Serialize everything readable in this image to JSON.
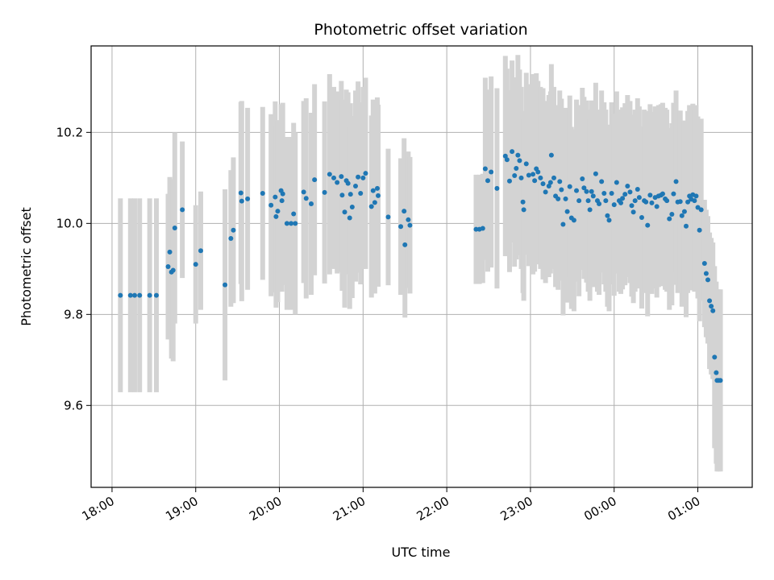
{
  "chart_data": {
    "type": "scatter",
    "title": "Photometric offset variation",
    "xlabel": "UTC time",
    "ylabel": "Photometric offset",
    "x_start": "18:00",
    "xlim_hours": [
      17.75,
      25.65
    ],
    "ylim": [
      9.42,
      10.39
    ],
    "x_ticks": [
      {
        "label": "18:00",
        "value": 18
      },
      {
        "label": "19:00",
        "value": 19
      },
      {
        "label": "20:00",
        "value": 20
      },
      {
        "label": "21:00",
        "value": 21
      },
      {
        "label": "22:00",
        "value": 22
      },
      {
        "label": "23:00",
        "value": 23
      },
      {
        "label": "00:00",
        "value": 24
      },
      {
        "label": "01:00",
        "value": 25
      }
    ],
    "y_ticks": [
      {
        "label": "9.6",
        "value": 9.6
      },
      {
        "label": "9.8",
        "value": 9.8
      },
      {
        "label": "10.0",
        "value": 10.0
      },
      {
        "label": "10.2",
        "value": 10.2
      }
    ],
    "grid": true,
    "colors": {
      "points": "#1f77b4",
      "errorbars": "#d3d3d3",
      "grid": "#b0b0b0"
    },
    "points": [
      [
        18.1,
        9.842,
        0.213
      ],
      [
        18.22,
        9.842,
        0.213
      ],
      [
        18.27,
        9.842,
        0.213
      ],
      [
        18.33,
        9.842,
        0.213
      ],
      [
        18.45,
        9.842,
        0.213
      ],
      [
        18.53,
        9.842,
        0.213
      ],
      [
        18.67,
        9.905,
        0.16
      ],
      [
        18.69,
        9.937,
        0.165
      ],
      [
        18.71,
        9.893,
        0.19
      ],
      [
        18.73,
        9.897,
        0.2
      ],
      [
        18.75,
        9.99,
        0.21
      ],
      [
        18.84,
        10.03,
        0.15
      ],
      [
        19.0,
        9.91,
        0.13
      ],
      [
        19.06,
        9.94,
        0.13
      ],
      [
        19.35,
        9.865,
        0.21
      ],
      [
        19.42,
        9.967,
        0.15
      ],
      [
        19.45,
        9.985,
        0.16
      ],
      [
        19.54,
        10.067,
        0.2
      ],
      [
        19.55,
        10.049,
        0.22
      ],
      [
        19.62,
        10.054,
        0.2
      ],
      [
        19.8,
        10.066,
        0.19
      ],
      [
        19.9,
        10.04,
        0.2
      ],
      [
        19.95,
        10.058,
        0.21
      ],
      [
        19.96,
        10.015,
        0.2
      ],
      [
        19.98,
        10.027,
        0.2
      ],
      [
        20.02,
        10.072,
        0.19
      ],
      [
        20.03,
        10.05,
        0.2
      ],
      [
        20.04,
        10.065,
        0.2
      ],
      [
        20.09,
        10.0,
        0.19
      ],
      [
        20.14,
        10.0,
        0.19
      ],
      [
        20.17,
        10.021,
        0.2
      ],
      [
        20.19,
        10.0,
        0.2
      ],
      [
        20.29,
        10.069,
        0.2
      ],
      [
        20.32,
        10.055,
        0.22
      ],
      [
        20.38,
        10.043,
        0.2
      ],
      [
        20.42,
        10.096,
        0.21
      ],
      [
        20.54,
        10.068,
        0.2
      ],
      [
        20.6,
        10.108,
        0.22
      ],
      [
        20.65,
        10.1,
        0.2
      ],
      [
        20.69,
        10.09,
        0.2
      ],
      [
        20.74,
        10.103,
        0.21
      ],
      [
        20.75,
        10.062,
        0.21
      ],
      [
        20.78,
        10.025,
        0.21
      ],
      [
        20.8,
        10.094,
        0.2
      ],
      [
        20.82,
        10.088,
        0.2
      ],
      [
        20.84,
        10.012,
        0.2
      ],
      [
        20.85,
        10.064,
        0.2
      ],
      [
        20.87,
        10.036,
        0.2
      ],
      [
        20.91,
        10.082,
        0.21
      ],
      [
        20.94,
        10.102,
        0.21
      ],
      [
        20.97,
        10.066,
        0.2
      ],
      [
        21.0,
        10.1,
        0.2
      ],
      [
        21.03,
        10.11,
        0.21
      ],
      [
        21.1,
        10.037,
        0.2
      ],
      [
        21.12,
        10.072,
        0.2
      ],
      [
        21.14,
        10.046,
        0.2
      ],
      [
        21.17,
        10.077,
        0.2
      ],
      [
        21.18,
        10.061,
        0.2
      ],
      [
        21.3,
        10.014,
        0.15
      ],
      [
        21.45,
        9.993,
        0.15
      ],
      [
        21.49,
        10.027,
        0.16
      ],
      [
        21.5,
        9.953,
        0.16
      ],
      [
        21.54,
        10.008,
        0.15
      ],
      [
        21.56,
        9.996,
        0.15
      ],
      [
        22.35,
        9.987,
        0.12
      ],
      [
        22.39,
        9.987,
        0.12
      ],
      [
        22.43,
        9.989,
        0.12
      ],
      [
        22.46,
        10.12,
        0.2
      ],
      [
        22.49,
        10.094,
        0.2
      ],
      [
        22.53,
        10.113,
        0.21
      ],
      [
        22.6,
        10.077,
        0.22
      ],
      [
        22.7,
        10.148,
        0.22
      ],
      [
        22.72,
        10.14,
        0.2
      ],
      [
        22.75,
        10.093,
        0.2
      ],
      [
        22.78,
        10.158,
        0.2
      ],
      [
        22.81,
        10.105,
        0.2
      ],
      [
        22.83,
        10.121,
        0.2
      ],
      [
        22.85,
        10.15,
        0.22
      ],
      [
        22.87,
        10.138,
        0.2
      ],
      [
        22.89,
        10.1,
        0.2
      ],
      [
        22.91,
        10.047,
        0.2
      ],
      [
        22.92,
        10.03,
        0.2
      ],
      [
        22.95,
        10.131,
        0.2
      ],
      [
        22.98,
        10.106,
        0.2
      ],
      [
        23.03,
        10.108,
        0.22
      ],
      [
        23.05,
        10.094,
        0.2
      ],
      [
        23.07,
        10.12,
        0.21
      ],
      [
        23.09,
        10.113,
        0.2
      ],
      [
        23.12,
        10.1,
        0.2
      ],
      [
        23.15,
        10.087,
        0.21
      ],
      [
        23.18,
        10.069,
        0.2
      ],
      [
        23.22,
        10.082,
        0.2
      ],
      [
        23.24,
        10.09,
        0.2
      ],
      [
        23.25,
        10.15,
        0.2
      ],
      [
        23.28,
        10.1,
        0.2
      ],
      [
        23.3,
        10.06,
        0.2
      ],
      [
        23.33,
        10.054,
        0.2
      ],
      [
        23.35,
        10.092,
        0.2
      ],
      [
        23.37,
        10.074,
        0.2
      ],
      [
        23.39,
        9.998,
        0.2
      ],
      [
        23.42,
        10.054,
        0.2
      ],
      [
        23.44,
        10.026,
        0.2
      ],
      [
        23.47,
        10.081,
        0.2
      ],
      [
        23.49,
        10.012,
        0.2
      ],
      [
        23.52,
        10.007,
        0.2
      ],
      [
        23.55,
        10.072,
        0.2
      ],
      [
        23.58,
        10.05,
        0.21
      ],
      [
        23.62,
        10.098,
        0.2
      ],
      [
        23.64,
        10.078,
        0.2
      ],
      [
        23.67,
        10.07,
        0.2
      ],
      [
        23.69,
        10.05,
        0.2
      ],
      [
        23.71,
        10.03,
        0.2
      ],
      [
        23.73,
        10.07,
        0.2
      ],
      [
        23.75,
        10.06,
        0.2
      ],
      [
        23.78,
        10.109,
        0.2
      ],
      [
        23.8,
        10.05,
        0.2
      ],
      [
        23.82,
        10.043,
        0.2
      ],
      [
        23.85,
        10.092,
        0.2
      ],
      [
        23.88,
        10.066,
        0.2
      ],
      [
        23.9,
        10.05,
        0.2
      ],
      [
        23.92,
        10.017,
        0.2
      ],
      [
        23.94,
        10.007,
        0.2
      ],
      [
        23.97,
        10.066,
        0.2
      ],
      [
        24.0,
        10.041,
        0.2
      ],
      [
        24.03,
        10.09,
        0.2
      ],
      [
        24.06,
        10.05,
        0.2
      ],
      [
        24.08,
        10.045,
        0.2
      ],
      [
        24.1,
        10.055,
        0.2
      ],
      [
        24.13,
        10.064,
        0.2
      ],
      [
        24.16,
        10.082,
        0.2
      ],
      [
        24.19,
        10.069,
        0.2
      ],
      [
        24.21,
        10.039,
        0.2
      ],
      [
        24.23,
        10.025,
        0.2
      ],
      [
        24.25,
        10.05,
        0.2
      ],
      [
        24.28,
        10.075,
        0.2
      ],
      [
        24.3,
        10.057,
        0.2
      ],
      [
        24.33,
        10.013,
        0.2
      ],
      [
        24.36,
        10.05,
        0.2
      ],
      [
        24.38,
        10.047,
        0.2
      ],
      [
        24.4,
        9.996,
        0.2
      ],
      [
        24.43,
        10.062,
        0.2
      ],
      [
        24.45,
        10.045,
        0.2
      ],
      [
        24.49,
        10.057,
        0.2
      ],
      [
        24.51,
        10.037,
        0.2
      ],
      [
        24.53,
        10.06,
        0.2
      ],
      [
        24.56,
        10.062,
        0.2
      ],
      [
        24.58,
        10.065,
        0.2
      ],
      [
        24.61,
        10.054,
        0.2
      ],
      [
        24.63,
        10.05,
        0.2
      ],
      [
        24.66,
        10.01,
        0.2
      ],
      [
        24.69,
        10.02,
        0.2
      ],
      [
        24.71,
        10.065,
        0.2
      ],
      [
        24.74,
        10.092,
        0.2
      ],
      [
        24.76,
        10.047,
        0.2
      ],
      [
        24.79,
        10.048,
        0.2
      ],
      [
        24.81,
        10.017,
        0.2
      ],
      [
        24.84,
        10.026,
        0.2
      ],
      [
        24.86,
        9.994,
        0.2
      ],
      [
        24.88,
        10.047,
        0.2
      ],
      [
        24.9,
        10.06,
        0.2
      ],
      [
        24.92,
        10.053,
        0.2
      ],
      [
        24.94,
        10.063,
        0.2
      ],
      [
        24.96,
        10.05,
        0.2
      ],
      [
        24.98,
        10.06,
        0.2
      ],
      [
        25.0,
        10.035,
        0.2
      ],
      [
        25.02,
        9.985,
        0.2
      ],
      [
        25.04,
        10.03,
        0.2
      ],
      [
        25.08,
        9.912,
        0.14
      ],
      [
        25.1,
        9.89,
        0.14
      ],
      [
        25.12,
        9.876,
        0.14
      ],
      [
        25.14,
        9.83,
        0.15
      ],
      [
        25.16,
        9.818,
        0.15
      ],
      [
        25.18,
        9.808,
        0.15
      ],
      [
        25.2,
        9.706,
        0.2
      ],
      [
        25.22,
        9.672,
        0.2
      ],
      [
        25.23,
        9.655,
        0.2
      ],
      [
        25.25,
        9.655,
        0.2
      ],
      [
        25.27,
        9.655,
        0.2
      ]
    ]
  }
}
